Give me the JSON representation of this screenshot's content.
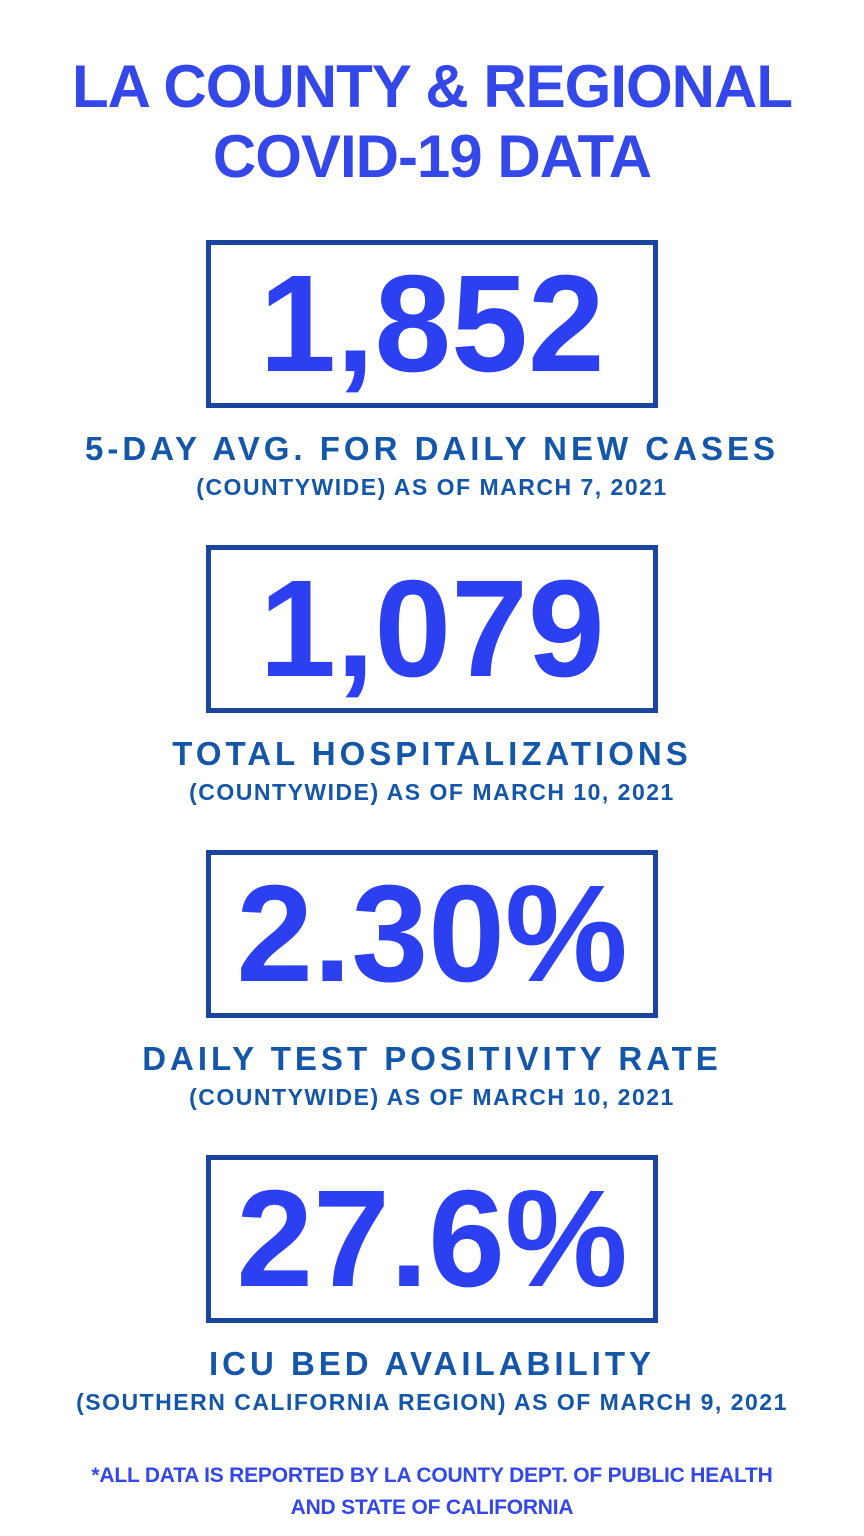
{
  "header": {
    "title_line1": "LA COUNTY & REGIONAL",
    "title_line2": "COVID-19 DATA"
  },
  "stats": [
    {
      "value": "1,852",
      "label": "5-DAY AVG. FOR DAILY NEW CASES",
      "sublabel": "(COUNTYWIDE) AS OF MARCH 7, 2021"
    },
    {
      "value": "1,079",
      "label": "TOTAL HOSPITALIZATIONS",
      "sublabel": "(COUNTYWIDE) AS OF MARCH 10, 2021"
    },
    {
      "value": "2.30%",
      "label": "DAILY TEST POSITIVITY RATE",
      "sublabel": "(COUNTYWIDE) AS OF MARCH 10, 2021"
    },
    {
      "value": "27.6%",
      "label": "ICU BED AVAILABILITY",
      "sublabel": "(SOUTHERN CALIFORNIA REGION) AS OF MARCH 9, 2021"
    }
  ],
  "footnote": {
    "line1": "*ALL DATA IS REPORTED BY LA COUNTY DEPT. OF PUBLIC HEALTH",
    "line2": "AND STATE OF CALIFORNIA"
  },
  "colors": {
    "title_blue": "#3447e8",
    "value_blue": "#2c40f2",
    "label_blue": "#1456a8",
    "border_blue": "#1b449e",
    "background": "#ffffff"
  }
}
